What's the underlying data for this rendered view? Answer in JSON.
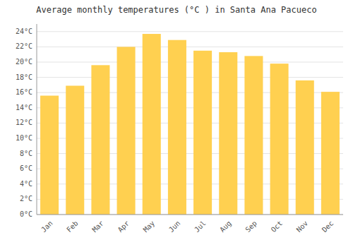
{
  "chart_data": {
    "type": "bar",
    "title": "Average monthly temperatures (°C ) in Santa Ana Pacueco",
    "categories": [
      "Jan",
      "Feb",
      "Mar",
      "Apr",
      "May",
      "Jun",
      "Jul",
      "Aug",
      "Sep",
      "Oct",
      "Nov",
      "Dec"
    ],
    "values": [
      15.6,
      16.9,
      19.6,
      22.0,
      23.7,
      22.9,
      21.5,
      21.3,
      20.8,
      19.8,
      17.6,
      16.1
    ],
    "color": "#FFD050",
    "ylim": [
      0,
      25
    ],
    "yticks": [
      {
        "value": 0,
        "label": "0°C"
      },
      {
        "value": 2,
        "label": "2°C"
      },
      {
        "value": 4,
        "label": "4°C"
      },
      {
        "value": 6,
        "label": "6°C"
      },
      {
        "value": 8,
        "label": "8°C"
      },
      {
        "value": 10,
        "label": "10°C"
      },
      {
        "value": 12,
        "label": "12°C"
      },
      {
        "value": 14,
        "label": "14°C"
      },
      {
        "value": 16,
        "label": "16°C"
      },
      {
        "value": 18,
        "label": "18°C"
      },
      {
        "value": 20,
        "label": "20°C"
      },
      {
        "value": 22,
        "label": "22°C"
      },
      {
        "value": 24,
        "label": "24°C"
      }
    ],
    "grid": true
  }
}
